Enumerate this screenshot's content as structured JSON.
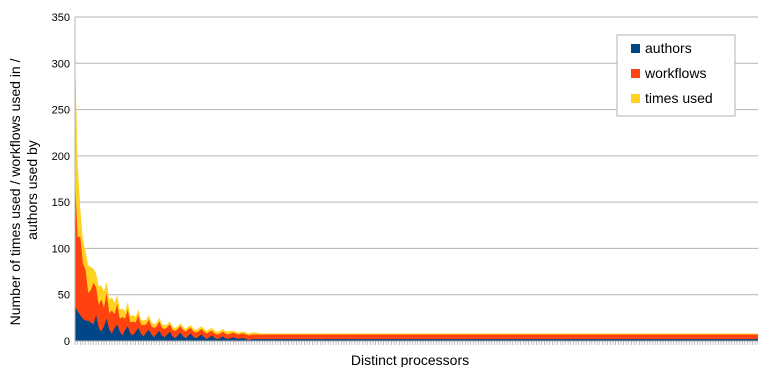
{
  "chart_data": {
    "type": "area",
    "stacked": true,
    "xlabel": "Distinct processors",
    "ylabel_lines": [
      "Number of times used / workflows used in /",
      "authors used by"
    ],
    "ylim": [
      0,
      350
    ],
    "yticks": [
      0,
      50,
      100,
      150,
      200,
      250,
      300,
      350
    ],
    "grid": true,
    "legend_position": "top-right",
    "point_count": 260,
    "series": [
      {
        "name": "authors",
        "color": "#004586",
        "values": [
          38,
          32,
          28,
          24,
          22,
          22,
          20,
          18,
          28,
          14,
          10,
          16,
          24,
          12,
          8,
          14,
          18,
          10,
          6,
          12,
          16,
          8,
          6,
          10,
          14,
          8,
          5,
          9,
          12,
          7,
          4,
          8,
          11,
          6,
          4,
          7,
          10,
          5,
          3,
          6,
          9,
          5,
          3,
          6,
          8,
          4,
          3,
          5,
          7,
          4,
          2,
          4,
          6,
          3,
          2,
          3,
          5,
          3,
          2,
          3,
          4,
          3,
          2,
          3,
          3,
          2,
          1,
          2,
          2,
          2
        ],
        "tail_value": 2
      },
      {
        "name": "workflows",
        "color": "#ff420e",
        "values": [
          140,
          80,
          85,
          60,
          55,
          30,
          35,
          45,
          30,
          25,
          35,
          20,
          28,
          18,
          25,
          15,
          22,
          14,
          20,
          12,
          18,
          12,
          15,
          10,
          14,
          10,
          12,
          9,
          11,
          9,
          10,
          8,
          10,
          8,
          9,
          8,
          8,
          7,
          8,
          7,
          7,
          7,
          7,
          7,
          6,
          6,
          6,
          6,
          6,
          6,
          6,
          6,
          5,
          5,
          5,
          5,
          5,
          5,
          5,
          5,
          5,
          5,
          5,
          5,
          5,
          5,
          5,
          5,
          5,
          5
        ],
        "tail_value": 5
      },
      {
        "name": "times used",
        "color": "#ffd320",
        "values": [
          135,
          80,
          30,
          25,
          20,
          30,
          25,
          15,
          15,
          20,
          15,
          18,
          12,
          15,
          14,
          12,
          10,
          10,
          9,
          8,
          8,
          7,
          7,
          6,
          6,
          5,
          5,
          5,
          5,
          4,
          4,
          4,
          4,
          4,
          4,
          3,
          3,
          3,
          3,
          3,
          3,
          3,
          3,
          3,
          3,
          3,
          3,
          3,
          3,
          3,
          3,
          3,
          3,
          3,
          3,
          3,
          3,
          3,
          3,
          3,
          2,
          2,
          2,
          2,
          2,
          2,
          2,
          2,
          2,
          2
        ],
        "tail_value": 1
      }
    ]
  }
}
